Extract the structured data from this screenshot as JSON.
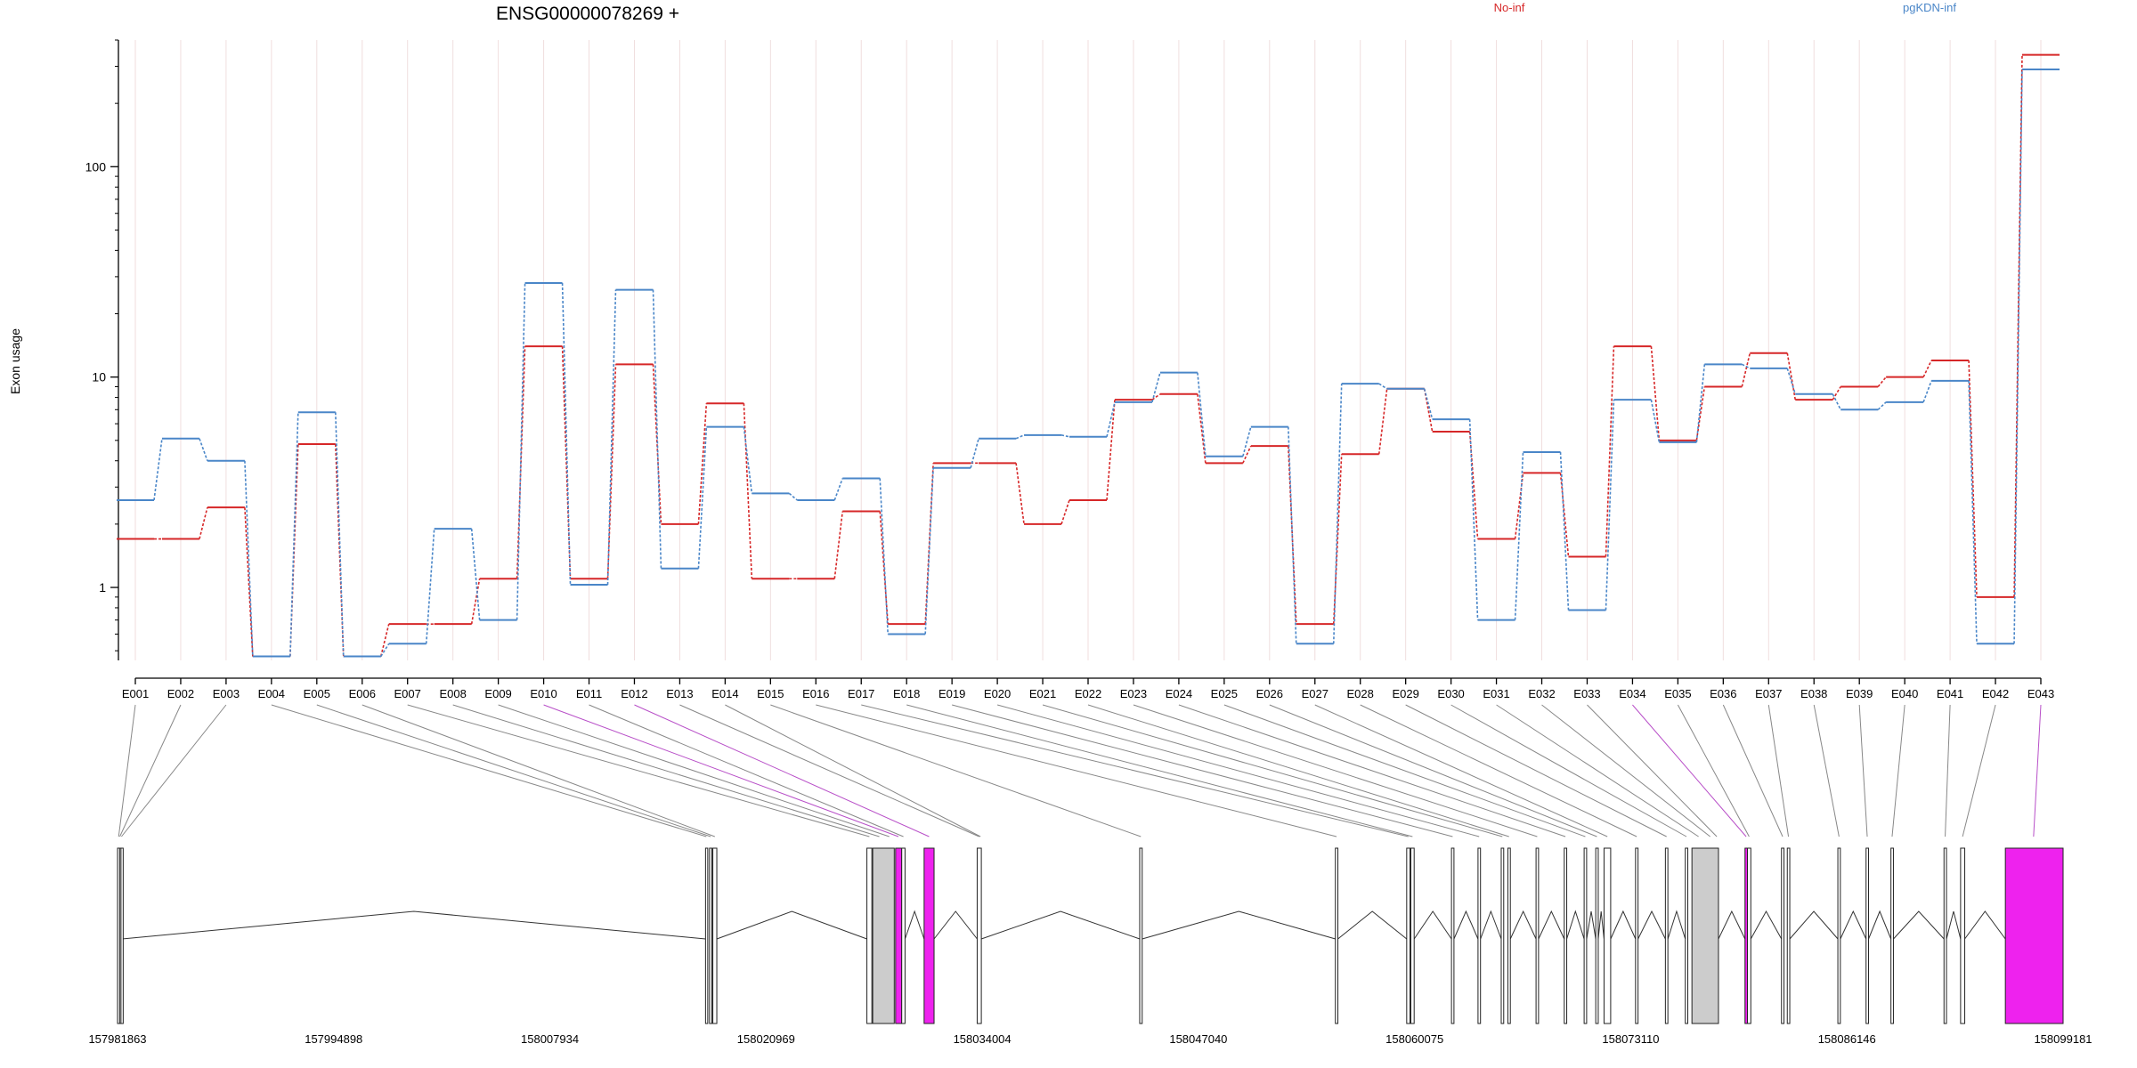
{
  "chart_data": {
    "type": "line",
    "title": "ENSG00000078269 +",
    "ylabel": "Exon usage",
    "xlabel": "",
    "y_scale": "log",
    "ylim": [
      0.45,
      400
    ],
    "y_ticks": [
      1,
      10,
      100
    ],
    "y_tick_labels": [
      "1",
      "10",
      "100"
    ],
    "grid": "faint vertical lines at each exon",
    "legend_position": "top",
    "categories": [
      "E001",
      "E002",
      "E003",
      "E004",
      "E005",
      "E006",
      "E007",
      "E008",
      "E009",
      "E010",
      "E011",
      "E012",
      "E013",
      "E014",
      "E015",
      "E016",
      "E017",
      "E018",
      "E019",
      "E020",
      "E021",
      "E022",
      "E023",
      "E024",
      "E025",
      "E026",
      "E027",
      "E028",
      "E029",
      "E030",
      "E031",
      "E032",
      "E033",
      "E034",
      "E035",
      "E036",
      "E037",
      "E038",
      "E039",
      "E040",
      "E041",
      "E042",
      "E043"
    ],
    "series": [
      {
        "name": "No-inf",
        "color": "#d62728",
        "values": [
          1.7,
          1.7,
          2.4,
          0.47,
          4.8,
          0.47,
          0.67,
          0.67,
          1.1,
          14,
          1.1,
          11.5,
          2.0,
          7.5,
          1.1,
          1.1,
          2.3,
          0.67,
          3.9,
          3.9,
          2.0,
          2.6,
          7.8,
          8.3,
          3.9,
          4.7,
          0.67,
          4.3,
          8.8,
          5.5,
          1.7,
          3.5,
          1.4,
          14,
          5.0,
          9.0,
          13,
          7.8,
          9.0,
          10,
          12,
          0.9,
          340
        ]
      },
      {
        "name": "pgKDN-inf",
        "color": "#4a86c8",
        "values": [
          2.6,
          5.1,
          4.0,
          0.47,
          6.8,
          0.47,
          0.54,
          1.9,
          0.7,
          28,
          1.03,
          26,
          1.23,
          5.8,
          2.8,
          2.6,
          3.3,
          0.6,
          3.7,
          5.1,
          5.3,
          5.2,
          7.6,
          10.5,
          4.2,
          5.8,
          0.54,
          9.3,
          8.8,
          6.3,
          0.7,
          4.4,
          0.78,
          7.8,
          4.9,
          11.5,
          11,
          8.3,
          7.0,
          7.6,
          9.6,
          0.54,
          290
        ]
      }
    ],
    "genomic_axis": {
      "range": [
        157981863,
        158099181
      ],
      "tick_labels": [
        "157981863",
        "157994898",
        "158007934",
        "158020969",
        "158034004",
        "158047040",
        "158060075",
        "158073110",
        "158086146",
        "158099181"
      ],
      "exons": [
        {
          "start": 157981863,
          "end": 157981980,
          "color": "white"
        },
        {
          "start": 157981990,
          "end": 157982060,
          "color": "white"
        },
        {
          "start": 157982070,
          "end": 157982140,
          "color": "white"
        },
        {
          "start": 158017320,
          "end": 158017420,
          "color": "white"
        },
        {
          "start": 158017560,
          "end": 158017700,
          "color": "white"
        },
        {
          "start": 158017760,
          "end": 158018000,
          "color": "white"
        },
        {
          "start": 158027050,
          "end": 158027350,
          "color": "white"
        },
        {
          "start": 158027400,
          "end": 158028700,
          "color": "lightgray"
        },
        {
          "start": 158028780,
          "end": 158029150,
          "color": "magenta"
        },
        {
          "start": 158029150,
          "end": 158029350,
          "color": "white"
        },
        {
          "start": 158030500,
          "end": 158031100,
          "color": "magenta"
        },
        {
          "start": 158033700,
          "end": 158033950,
          "color": "white"
        },
        {
          "start": 158043500,
          "end": 158043650,
          "color": "white"
        },
        {
          "start": 158055300,
          "end": 158055450,
          "color": "white"
        },
        {
          "start": 158059600,
          "end": 158059800,
          "color": "white"
        },
        {
          "start": 158059850,
          "end": 158060050,
          "color": "white"
        },
        {
          "start": 158062300,
          "end": 158062450,
          "color": "white"
        },
        {
          "start": 158063900,
          "end": 158064050,
          "color": "white"
        },
        {
          "start": 158065300,
          "end": 158065450,
          "color": "white"
        },
        {
          "start": 158065700,
          "end": 158065850,
          "color": "white"
        },
        {
          "start": 158067400,
          "end": 158067550,
          "color": "white"
        },
        {
          "start": 158069100,
          "end": 158069250,
          "color": "white"
        },
        {
          "start": 158070300,
          "end": 158070450,
          "color": "white"
        },
        {
          "start": 158071000,
          "end": 158071150,
          "color": "white"
        },
        {
          "start": 158071500,
          "end": 158071900,
          "color": "white"
        },
        {
          "start": 158073400,
          "end": 158073550,
          "color": "white"
        },
        {
          "start": 158075200,
          "end": 158075350,
          "color": "white"
        },
        {
          "start": 158076400,
          "end": 158076550,
          "color": "white"
        },
        {
          "start": 158076800,
          "end": 158078400,
          "color": "lightgray"
        },
        {
          "start": 158080000,
          "end": 158080150,
          "color": "magenta"
        },
        {
          "start": 158080150,
          "end": 158080350,
          "color": "white"
        },
        {
          "start": 158082200,
          "end": 158082350,
          "color": "white"
        },
        {
          "start": 158082550,
          "end": 158082700,
          "color": "white"
        },
        {
          "start": 158085600,
          "end": 158085750,
          "color": "white"
        },
        {
          "start": 158087300,
          "end": 158087450,
          "color": "white"
        },
        {
          "start": 158088800,
          "end": 158088950,
          "color": "white"
        },
        {
          "start": 158092000,
          "end": 158092150,
          "color": "white"
        },
        {
          "start": 158093000,
          "end": 158093250,
          "color": "white"
        },
        {
          "start": 158095700,
          "end": 158099181,
          "color": "magenta"
        }
      ],
      "exon_links": [
        {
          "exon": "E001",
          "pos": 157981930,
          "color": "gray"
        },
        {
          "exon": "E002",
          "pos": 157982000,
          "color": "gray"
        },
        {
          "exon": "E003",
          "pos": 157982100,
          "color": "gray"
        },
        {
          "exon": "E004",
          "pos": 158017370,
          "color": "gray"
        },
        {
          "exon": "E005",
          "pos": 158017630,
          "color": "gray"
        },
        {
          "exon": "E006",
          "pos": 158017880,
          "color": "gray"
        },
        {
          "exon": "E007",
          "pos": 158027200,
          "color": "gray"
        },
        {
          "exon": "E008",
          "pos": 158027800,
          "color": "gray"
        },
        {
          "exon": "E009",
          "pos": 158028400,
          "color": "gray"
        },
        {
          "exon": "E010",
          "pos": 158028950,
          "color": "magenta"
        },
        {
          "exon": "E011",
          "pos": 158029250,
          "color": "gray"
        },
        {
          "exon": "E012",
          "pos": 158030800,
          "color": "magenta"
        },
        {
          "exon": "E013",
          "pos": 158033820,
          "color": "gray"
        },
        {
          "exon": "E014",
          "pos": 158033900,
          "color": "gray"
        },
        {
          "exon": "E015",
          "pos": 158043570,
          "color": "gray"
        },
        {
          "exon": "E016",
          "pos": 158055370,
          "color": "gray"
        },
        {
          "exon": "E017",
          "pos": 158059700,
          "color": "gray"
        },
        {
          "exon": "E018",
          "pos": 158059950,
          "color": "gray"
        },
        {
          "exon": "E019",
          "pos": 158062370,
          "color": "gray"
        },
        {
          "exon": "E020",
          "pos": 158063970,
          "color": "gray"
        },
        {
          "exon": "E021",
          "pos": 158065370,
          "color": "gray"
        },
        {
          "exon": "E022",
          "pos": 158065770,
          "color": "gray"
        },
        {
          "exon": "E023",
          "pos": 158067470,
          "color": "gray"
        },
        {
          "exon": "E024",
          "pos": 158069170,
          "color": "gray"
        },
        {
          "exon": "E025",
          "pos": 158070370,
          "color": "gray"
        },
        {
          "exon": "E026",
          "pos": 158071070,
          "color": "gray"
        },
        {
          "exon": "E027",
          "pos": 158071700,
          "color": "gray"
        },
        {
          "exon": "E028",
          "pos": 158073470,
          "color": "gray"
        },
        {
          "exon": "E029",
          "pos": 158075270,
          "color": "gray"
        },
        {
          "exon": "E030",
          "pos": 158076470,
          "color": "gray"
        },
        {
          "exon": "E031",
          "pos": 158077200,
          "color": "gray"
        },
        {
          "exon": "E032",
          "pos": 158077900,
          "color": "gray"
        },
        {
          "exon": "E033",
          "pos": 158078300,
          "color": "gray"
        },
        {
          "exon": "E034",
          "pos": 158080070,
          "color": "magenta"
        },
        {
          "exon": "E035",
          "pos": 158080250,
          "color": "gray"
        },
        {
          "exon": "E036",
          "pos": 158082270,
          "color": "gray"
        },
        {
          "exon": "E037",
          "pos": 158082620,
          "color": "gray"
        },
        {
          "exon": "E038",
          "pos": 158085670,
          "color": "gray"
        },
        {
          "exon": "E039",
          "pos": 158087370,
          "color": "gray"
        },
        {
          "exon": "E040",
          "pos": 158088870,
          "color": "gray"
        },
        {
          "exon": "E041",
          "pos": 158092070,
          "color": "gray"
        },
        {
          "exon": "E042",
          "pos": 158093120,
          "color": "gray"
        },
        {
          "exon": "E043",
          "pos": 158097400,
          "color": "magenta"
        }
      ]
    }
  }
}
